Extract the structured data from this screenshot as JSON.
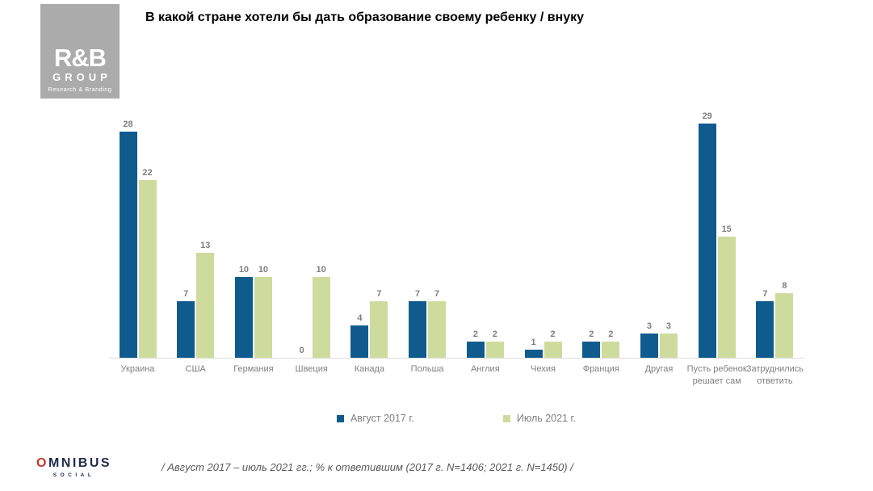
{
  "title": "В какой стране хотели бы дать образование своему ребенку / внуку",
  "rb_logo": {
    "main": "R&B",
    "group": "GROUP",
    "tagline": "Research & Branding"
  },
  "omnibus_logo": {
    "o": "O",
    "rest": "MNIBUS",
    "sub": "SOCIAL"
  },
  "footnote": "/ Август 2017 – июль 2021 гг.; % к ответившим (2017 г. N=1406; 2021 г. N=1450) /",
  "colors": {
    "series_2017": "#0F5B8E",
    "series_2021": "#CDDC9C",
    "label_gray": "#7F7F7F",
    "logo_gray": "#ABABAB",
    "omnibus_navy": "#1F2B4D",
    "omnibus_red": "#C0392B"
  },
  "chart_data": {
    "type": "bar",
    "title": "В какой стране хотели бы дать образование своему ребенку / внуку",
    "categories": [
      "Украина",
      "США",
      "Германия",
      "Швеция",
      "Канада",
      "Польша",
      "Англия",
      "Чехия",
      "Франция",
      "Другая",
      "Пусть ребенок решает сам",
      "Затруднились ответить"
    ],
    "series": [
      {
        "name": "Август 2017 г.",
        "color": "#0F5B8E",
        "values": [
          28,
          7,
          10,
          0,
          4,
          7,
          2,
          1,
          2,
          3,
          29,
          7
        ]
      },
      {
        "name": "Июль 2021 г.",
        "color": "#CDDC9C",
        "values": [
          22,
          13,
          10,
          10,
          7,
          7,
          2,
          2,
          2,
          3,
          15,
          8
        ]
      }
    ],
    "xlabel": "",
    "ylabel": "",
    "ylim": [
      0,
      30
    ],
    "value_labels": true,
    "grid": false,
    "legend_position": "bottom"
  }
}
